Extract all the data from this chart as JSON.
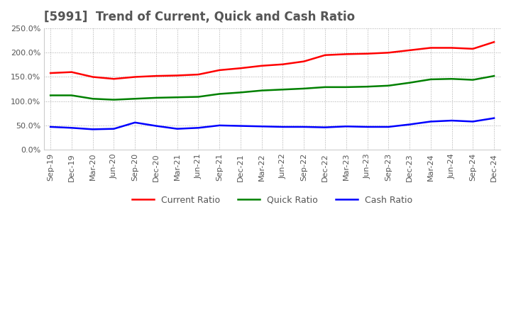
{
  "title": "[5991]  Trend of Current, Quick and Cash Ratio",
  "title_fontsize": 12,
  "title_color": "#555555",
  "background_color": "#ffffff",
  "grid_color": "#aaaaaa",
  "x_labels": [
    "Sep-19",
    "Dec-19",
    "Mar-20",
    "Jun-20",
    "Sep-20",
    "Dec-20",
    "Mar-21",
    "Jun-21",
    "Sep-21",
    "Dec-21",
    "Mar-22",
    "Jun-22",
    "Sep-22",
    "Dec-22",
    "Mar-23",
    "Jun-23",
    "Sep-23",
    "Dec-23",
    "Mar-24",
    "Jun-24",
    "Sep-24",
    "Dec-24"
  ],
  "current_ratio": [
    1.58,
    1.6,
    1.5,
    1.46,
    1.5,
    1.52,
    1.53,
    1.55,
    1.64,
    1.68,
    1.73,
    1.76,
    1.82,
    1.95,
    1.97,
    1.98,
    2.0,
    2.05,
    2.1,
    2.1,
    2.08,
    2.22
  ],
  "quick_ratio": [
    1.12,
    1.12,
    1.05,
    1.03,
    1.05,
    1.07,
    1.08,
    1.09,
    1.15,
    1.18,
    1.22,
    1.24,
    1.26,
    1.29,
    1.29,
    1.3,
    1.32,
    1.38,
    1.45,
    1.46,
    1.44,
    1.52
  ],
  "cash_ratio": [
    0.47,
    0.45,
    0.42,
    0.43,
    0.56,
    0.49,
    0.43,
    0.45,
    0.5,
    0.49,
    0.48,
    0.47,
    0.47,
    0.46,
    0.48,
    0.47,
    0.47,
    0.52,
    0.58,
    0.6,
    0.58,
    0.65
  ],
  "current_color": "#ff0000",
  "quick_color": "#008000",
  "cash_color": "#0000ff",
  "line_width": 1.8,
  "legend_labels": [
    "Current Ratio",
    "Quick Ratio",
    "Cash Ratio"
  ],
  "legend_fontsize": 9,
  "tick_fontsize": 8
}
